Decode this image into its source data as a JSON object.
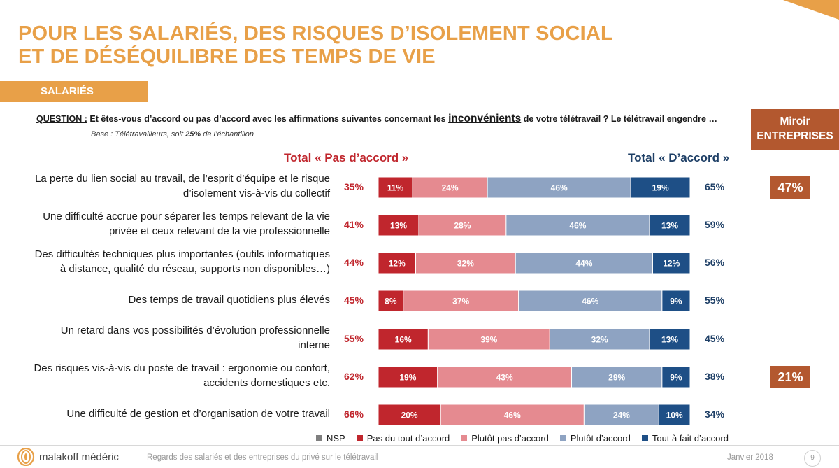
{
  "header": {
    "title_line1": "POUR LES SALARIÉS, DES RISQUES D’ISOLEMENT SOCIAL",
    "title_line2": "ET DE DÉSÉQUILIBRE DES TEMPS DE VIE",
    "section": "SALARIÉS"
  },
  "question": {
    "label": "QUESTION :",
    "text_before": " Et êtes-vous d’accord ou pas d’accord avec les affirmations suivantes concernant  les ",
    "keyword": "inconvénients",
    "text_after": " de votre télétravail ? Le télétravail engendre …",
    "base_prefix": "Base : Télétravailleurs, soit ",
    "base_value": "25%",
    "base_suffix": " de l’échantillon"
  },
  "miroir": {
    "line1": "Miroir",
    "line2": "ENTREPRISES"
  },
  "totals_headers": {
    "left": "Total « Pas d’accord »",
    "right": "Total « D’accord »"
  },
  "colors": {
    "title": "#e8a048",
    "pas_du_tout": "#c0262d",
    "plutot_pas": "#e58a90",
    "plutot": "#8ea3c2",
    "tout_a_fait": "#1e4f86",
    "nsp": "#7f7f7f",
    "miroir": "#b3582f"
  },
  "chart_data": {
    "type": "bar",
    "orientation": "horizontal-stacked",
    "unit": "%",
    "categories": [
      "La perte du lien social au travail, de l’esprit d’équipe et le risque d’isolement vis-à-vis du collectif",
      "Une difficulté accrue pour séparer les temps relevant de la vie privée et ceux relevant de la vie professionnelle",
      "Des difficultés techniques plus importantes (outils informatiques à distance, qualité du réseau, supports non disponibles…)",
      "Des temps de travail quotidiens plus élevés",
      "Un retard dans vos possibilités d’évolution professionnelle interne",
      "Des risques vis-à-vis du poste de travail : ergonomie ou confort, accidents domestiques etc.",
      "Une difficulté de gestion et d’organisation de votre travail"
    ],
    "label_lines": [
      [
        "La perte du lien social au travail, de l’esprit d’équipe et le risque",
        "d’isolement vis-à-vis du collectif"
      ],
      [
        "Une difficulté accrue pour séparer les temps relevant de la vie",
        "privée et ceux relevant de la vie professionnelle"
      ],
      [
        "Des difficultés techniques plus importantes (outils informatiques",
        "à distance, qualité du réseau, supports non disponibles…)"
      ],
      [
        "Des temps de travail quotidiens plus élevés"
      ],
      [
        "Un retard dans vos possibilités d’évolution professionnelle",
        "interne"
      ],
      [
        "Des risques vis-à-vis du poste de travail : ergonomie ou confort,",
        "accidents domestiques etc."
      ],
      [
        "Une difficulté de gestion et d’organisation de votre travail"
      ]
    ],
    "series": [
      {
        "name": "NSP",
        "values": [
          0,
          0,
          0,
          0,
          0,
          0,
          0
        ]
      },
      {
        "name": "Pas du tout d’accord",
        "values": [
          11,
          13,
          12,
          8,
          16,
          19,
          20
        ]
      },
      {
        "name": "Plutôt pas d’accord",
        "values": [
          24,
          28,
          32,
          37,
          39,
          43,
          46
        ]
      },
      {
        "name": "Plutôt d’accord",
        "values": [
          46,
          46,
          44,
          46,
          32,
          29,
          24
        ]
      },
      {
        "name": "Tout à fait d’accord",
        "values": [
          19,
          13,
          12,
          9,
          13,
          9,
          10
        ]
      }
    ],
    "total_pas_accord": [
      "35%",
      "41%",
      "44%",
      "45%",
      "55%",
      "62%",
      "66%"
    ],
    "total_accord": [
      "65%",
      "59%",
      "56%",
      "55%",
      "45%",
      "38%",
      "34%"
    ],
    "miroir_entreprises": [
      "47%",
      "",
      "",
      "",
      "",
      "21%",
      ""
    ],
    "legend": [
      "NSP",
      "Pas du tout d’accord",
      "Plutôt pas d’accord",
      "Plutôt d’accord",
      "Tout à fait d’accord"
    ],
    "legend_position": "bottom"
  },
  "footer": {
    "brand": "malakoff médéric",
    "note": "Regards des salariés et des entreprises du privé sur le télétravail",
    "date": "Janvier 2018",
    "page": "9"
  }
}
